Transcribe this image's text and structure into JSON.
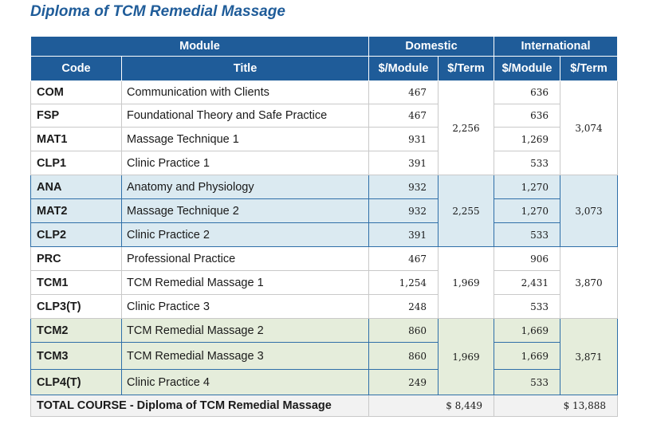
{
  "page_title": "Diploma of TCM Remedial Massage",
  "headers": {
    "module": "Module",
    "domestic": "Domestic",
    "international": "International",
    "code": "Code",
    "title": "Title",
    "per_module": "$/Module",
    "per_term": "$/Term"
  },
  "groups": [
    {
      "domestic_term": "2,256",
      "international_term": "3,074",
      "rows": [
        {
          "code": "COM",
          "title": "Communication with Clients",
          "dom": "467",
          "intl": "636"
        },
        {
          "code": "FSP",
          "title": "Foundational Theory and Safe Practice",
          "dom": "467",
          "intl": "636"
        },
        {
          "code": "MAT1",
          "title": "Massage Technique 1",
          "dom": "931",
          "intl": "1,269"
        },
        {
          "code": "CLP1",
          "title": "Clinic Practice 1",
          "dom": "391",
          "intl": "533"
        }
      ]
    },
    {
      "domestic_term": "2,255",
      "international_term": "3,073",
      "rows": [
        {
          "code": "ANA",
          "title": "Anatomy and Physiology",
          "dom": "932",
          "intl": "1,270"
        },
        {
          "code": "MAT2",
          "title": "Massage Technique 2",
          "dom": "932",
          "intl": "1,270"
        },
        {
          "code": "CLP2",
          "title": "Clinic Practice 2",
          "dom": "391",
          "intl": "533"
        }
      ]
    },
    {
      "domestic_term": "1,969",
      "international_term": "3,870",
      "rows": [
        {
          "code": "PRC",
          "title": "Professional Practice",
          "dom": "467",
          "intl": "906"
        },
        {
          "code": "TCM1",
          "title": "TCM Remedial Massage 1",
          "dom": "1,254",
          "intl": "2,431"
        },
        {
          "code": "CLP3(T)",
          "title": "Clinic Practice 3",
          "dom": "248",
          "intl": "533"
        }
      ]
    },
    {
      "domestic_term": "1,969",
      "international_term": "3,871",
      "rows": [
        {
          "code": "TCM2",
          "title": "TCM Remedial Massage 2",
          "dom": "860",
          "intl": "1,669"
        },
        {
          "code": "TCM3",
          "title": "TCM Remedial Massage 3",
          "dom": "860",
          "intl": "1,669"
        },
        {
          "code": "CLP4(T)",
          "title": "Clinic Practice 4",
          "dom": "249",
          "intl": "533"
        }
      ]
    }
  ],
  "total": {
    "label": "TOTAL COURSE - Diploma of TCM Remedial Massage",
    "domestic": "$ 8,449",
    "international": "$ 13,888"
  }
}
